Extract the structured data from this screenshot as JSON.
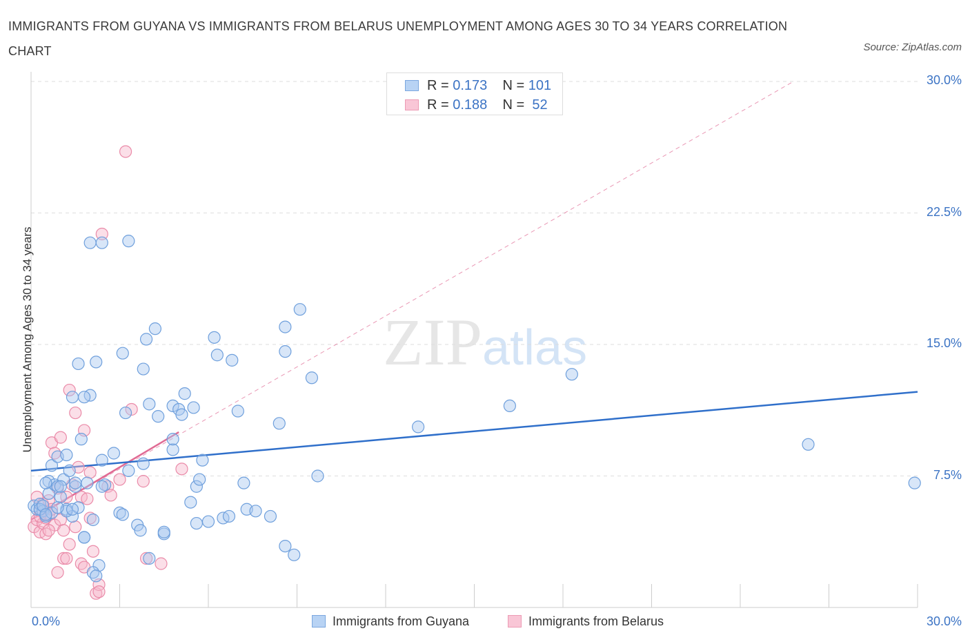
{
  "title": "IMMIGRANTS FROM GUYANA VS IMMIGRANTS FROM BELARUS UNEMPLOYMENT AMONG AGES 30 TO 34 YEARS CORRELATION CHART",
  "source": "Source: ZipAtlas.com",
  "watermark": {
    "zip": "ZIP",
    "atlas": "atlas"
  },
  "legend_top": {
    "rows": [
      {
        "r_label": "R = ",
        "r_value": "0.173",
        "n_label": "N = ",
        "n_value": "101"
      },
      {
        "r_label": "R = ",
        "r_value": "0.188",
        "n_label": "N = ",
        "n_value": " 52"
      }
    ]
  },
  "colors": {
    "guyana_fill": "#a9c8f0",
    "guyana_stroke": "#6e9fdc",
    "guyana_line": "#2f6fca",
    "belarus_fill": "#f7b8cb",
    "belarus_stroke": "#ea8aa8",
    "belarus_line": "#e06b94",
    "grid": "#dddddd",
    "axis_text": "#3b73c4"
  },
  "chart_data": {
    "type": "scatter",
    "title": "IMMIGRANTS FROM GUYANA VS IMMIGRANTS FROM BELARUS UNEMPLOYMENT AMONG AGES 30 TO 34 YEARS CORRELATION CHART",
    "xlabel": "",
    "ylabel": "Unemployment Among Ages 30 to 34 years",
    "xlim": [
      0,
      30
    ],
    "ylim": [
      0,
      30
    ],
    "x_tick_labels": [
      "0.0%",
      "30.0%"
    ],
    "y_tick_labels": [
      "7.5%",
      "15.0%",
      "22.5%",
      "30.0%"
    ],
    "y_ticks": [
      7.5,
      15,
      22.5,
      30
    ],
    "legend": [
      "Immigrants from Guyana",
      "Immigrants from Belarus"
    ],
    "series": [
      {
        "name": "Immigrants from Guyana",
        "trend": {
          "x": [
            0,
            30
          ],
          "y": [
            7.8,
            12.3
          ]
        },
        "points": [
          [
            0.1,
            5.8
          ],
          [
            0.2,
            5.6
          ],
          [
            0.3,
            5.9
          ],
          [
            0.4,
            5.5
          ],
          [
            0.5,
            5.2
          ],
          [
            0.6,
            7.2
          ],
          [
            0.6,
            6.5
          ],
          [
            0.7,
            8.1
          ],
          [
            0.8,
            7.0
          ],
          [
            0.9,
            8.6
          ],
          [
            1.0,
            6.3
          ],
          [
            1.1,
            7.3
          ],
          [
            1.2,
            5.6
          ],
          [
            1.2,
            8.7
          ],
          [
            1.3,
            7.8
          ],
          [
            1.4,
            5.2
          ],
          [
            1.5,
            6.9
          ],
          [
            1.6,
            5.7
          ],
          [
            1.7,
            9.6
          ],
          [
            1.8,
            4.0
          ],
          [
            1.9,
            7.1
          ],
          [
            2.0,
            12.1
          ],
          [
            2.1,
            5.0
          ],
          [
            2.2,
            14.0
          ],
          [
            2.4,
            8.4
          ],
          [
            2.5,
            7.0
          ],
          [
            2.8,
            8.8
          ],
          [
            3.0,
            5.4
          ],
          [
            3.2,
            11.1
          ],
          [
            3.3,
            7.8
          ],
          [
            2.3,
            2.4
          ],
          [
            2.1,
            2.0
          ],
          [
            2.2,
            1.8
          ],
          [
            3.6,
            4.7
          ],
          [
            3.8,
            8.2
          ],
          [
            3.8,
            13.6
          ],
          [
            4.0,
            11.6
          ],
          [
            4.2,
            15.9
          ],
          [
            4.3,
            10.9
          ],
          [
            4.5,
            4.2
          ],
          [
            3.9,
            15.3
          ],
          [
            1.4,
            12.0
          ],
          [
            1.5,
            7.1
          ],
          [
            3.1,
            14.5
          ],
          [
            3.1,
            5.3
          ],
          [
            0.5,
            7.1
          ],
          [
            0.9,
            6.9
          ],
          [
            1.0,
            6.9
          ],
          [
            1.2,
            5.5
          ],
          [
            1.4,
            5.6
          ],
          [
            2.0,
            20.8
          ],
          [
            2.4,
            20.8
          ],
          [
            3.3,
            20.9
          ],
          [
            4.0,
            2.8
          ],
          [
            4.5,
            4.3
          ],
          [
            3.7,
            4.4
          ],
          [
            4.8,
            9.0
          ],
          [
            4.8,
            9.6
          ],
          [
            4.8,
            11.5
          ],
          [
            5.0,
            11.3
          ],
          [
            5.1,
            11.0
          ],
          [
            5.2,
            12.2
          ],
          [
            5.4,
            6.0
          ],
          [
            5.5,
            11.4
          ],
          [
            5.6,
            6.9
          ],
          [
            5.6,
            4.8
          ],
          [
            5.7,
            7.3
          ],
          [
            5.8,
            8.4
          ],
          [
            6.0,
            4.9
          ],
          [
            6.2,
            15.4
          ],
          [
            6.3,
            14.4
          ],
          [
            6.5,
            5.1
          ],
          [
            6.7,
            5.2
          ],
          [
            6.8,
            14.1
          ],
          [
            7.0,
            11.2
          ],
          [
            7.2,
            7.1
          ],
          [
            7.3,
            5.6
          ],
          [
            7.6,
            5.5
          ],
          [
            8.1,
            5.2
          ],
          [
            8.4,
            10.5
          ],
          [
            8.6,
            3.5
          ],
          [
            8.6,
            14.6
          ],
          [
            8.9,
            3.0
          ],
          [
            8.6,
            16.0
          ],
          [
            9.1,
            17.0
          ],
          [
            9.5,
            13.1
          ],
          [
            9.7,
            7.5
          ],
          [
            1.6,
            13.9
          ],
          [
            1.8,
            12.0
          ],
          [
            0.3,
            5.6
          ],
          [
            13.1,
            10.3
          ],
          [
            16.2,
            11.5
          ],
          [
            18.3,
            13.3
          ],
          [
            26.3,
            9.3
          ],
          [
            29.9,
            7.1
          ],
          [
            1.8,
            4.0
          ],
          [
            0.7,
            5.4
          ],
          [
            0.4,
            5.8
          ],
          [
            0.9,
            5.7
          ],
          [
            0.5,
            5.3
          ],
          [
            2.4,
            6.9
          ]
        ]
      },
      {
        "name": "Immigrants from Belarus",
        "trend": {
          "x": [
            0,
            5.0
          ],
          "y": [
            5.0,
            10.0
          ]
        },
        "trend_extended": {
          "x": [
            0,
            25.8
          ],
          "y": [
            5.0,
            30.0
          ]
        },
        "points": [
          [
            0.1,
            4.6
          ],
          [
            0.2,
            5.0
          ],
          [
            0.2,
            6.3
          ],
          [
            0.3,
            4.3
          ],
          [
            0.3,
            5.5
          ],
          [
            0.4,
            4.8
          ],
          [
            0.4,
            5.9
          ],
          [
            0.5,
            5.1
          ],
          [
            0.5,
            4.2
          ],
          [
            0.6,
            5.3
          ],
          [
            0.6,
            6.1
          ],
          [
            0.7,
            5.6
          ],
          [
            0.7,
            9.4
          ],
          [
            0.8,
            4.7
          ],
          [
            0.8,
            8.8
          ],
          [
            0.9,
            6.8
          ],
          [
            0.9,
            2.0
          ],
          [
            1.0,
            9.7
          ],
          [
            1.0,
            5.0
          ],
          [
            1.1,
            4.4
          ],
          [
            1.1,
            2.8
          ],
          [
            1.2,
            2.8
          ],
          [
            1.2,
            6.3
          ],
          [
            1.3,
            3.6
          ],
          [
            1.3,
            12.4
          ],
          [
            1.4,
            7.0
          ],
          [
            1.5,
            4.6
          ],
          [
            1.5,
            11.1
          ],
          [
            1.6,
            8.0
          ],
          [
            1.7,
            6.3
          ],
          [
            1.7,
            2.5
          ],
          [
            1.8,
            10.1
          ],
          [
            1.8,
            2.3
          ],
          [
            1.9,
            6.2
          ],
          [
            2.0,
            7.7
          ],
          [
            2.0,
            5.1
          ],
          [
            2.1,
            3.2
          ],
          [
            2.2,
            0.8
          ],
          [
            2.3,
            1.3
          ],
          [
            2.3,
            0.9
          ],
          [
            2.4,
            21.3
          ],
          [
            2.6,
            6.9
          ],
          [
            2.7,
            6.4
          ],
          [
            3.0,
            7.3
          ],
          [
            3.2,
            26.0
          ],
          [
            3.4,
            11.3
          ],
          [
            3.8,
            7.2
          ],
          [
            3.9,
            2.8
          ],
          [
            4.4,
            2.5
          ],
          [
            5.1,
            7.9
          ],
          [
            0.3,
            5.2
          ],
          [
            0.6,
            4.4
          ]
        ]
      }
    ]
  },
  "bottom_legend": {
    "guyana": "Immigrants from Guyana",
    "belarus": "Immigrants from Belarus"
  }
}
